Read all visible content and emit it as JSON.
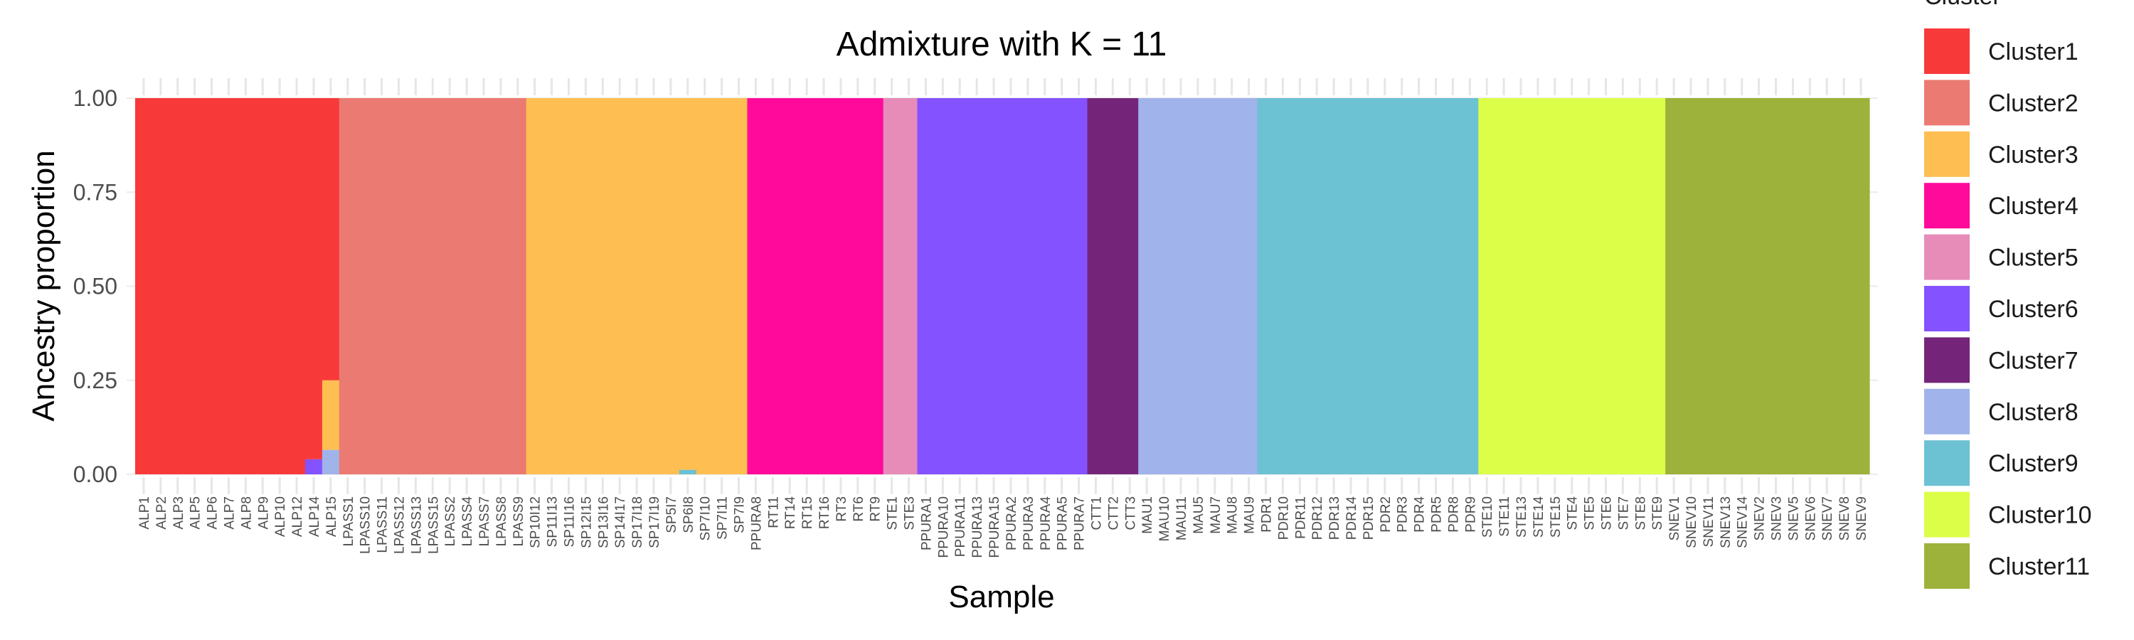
{
  "chart_data": {
    "type": "bar",
    "stacked": true,
    "title": "Admixture with K = 11",
    "xlabel": "Sample",
    "ylabel": "Ancestry proportion",
    "ylim": [
      0,
      1
    ],
    "yticks": [
      "0.00",
      "0.25",
      "0.50",
      "0.75",
      "1.00"
    ],
    "grid": true,
    "legend": {
      "title": "Cluster",
      "placement": "right",
      "entries": [
        {
          "name": "Cluster1",
          "color": "#f8393a"
        },
        {
          "name": "Cluster2",
          "color": "#eb7a72"
        },
        {
          "name": "Cluster3",
          "color": "#febe51"
        },
        {
          "name": "Cluster4",
          "color": "#ff0a9b"
        },
        {
          "name": "Cluster5",
          "color": "#e78bb8"
        },
        {
          "name": "Cluster6",
          "color": "#8452fe"
        },
        {
          "name": "Cluster7",
          "color": "#742579"
        },
        {
          "name": "Cluster8",
          "color": "#a0b3ea"
        },
        {
          "name": "Cluster9",
          "color": "#6cc1d3"
        },
        {
          "name": "Cluster10",
          "color": "#dcfe49"
        },
        {
          "name": "Cluster11",
          "color": "#9cb23a"
        }
      ]
    },
    "categories": [
      "ALP1",
      "ALP2",
      "ALP3",
      "ALP5",
      "ALP6",
      "ALP7",
      "ALP8",
      "ALP9",
      "ALP10",
      "ALP12",
      "ALP14",
      "ALP15",
      "LPASS1",
      "LPASS10",
      "LPASS11",
      "LPASS12",
      "LPASS13",
      "LPASS15",
      "LPASS2",
      "LPASS4",
      "LPASS7",
      "LPASS8",
      "LPASS9",
      "SP10I12",
      "SP11I13",
      "SP11I16",
      "SP12I15",
      "SP13I16",
      "SP14I17",
      "SP17I18",
      "SP17I19",
      "SP5I7",
      "SP6I8",
      "SP7I10",
      "SP7I11",
      "SP7I9",
      "PPURA8",
      "RT11",
      "RT14",
      "RT15",
      "RT16",
      "RT3",
      "RT6",
      "RT9",
      "STE1",
      "STE3",
      "PPURA1",
      "PPURA10",
      "PPURA11",
      "PPURA13",
      "PPURA15",
      "PPURA2",
      "PPURA3",
      "PPURA4",
      "PPURA5",
      "PPURA7",
      "CTT1",
      "CTT2",
      "CTT3",
      "MAU1",
      "MAU10",
      "MAU11",
      "MAU5",
      "MAU7",
      "MAU8",
      "MAU9",
      "PDR1",
      "PDR10",
      "PDR11",
      "PDR12",
      "PDR13",
      "PDR14",
      "PDR15",
      "PDR2",
      "PDR3",
      "PDR4",
      "PDR5",
      "PDR8",
      "PDR9",
      "STE10",
      "STE11",
      "STE13",
      "STE14",
      "STE15",
      "STE4",
      "STE5",
      "STE6",
      "STE7",
      "STE8",
      "STE9",
      "SNEV1",
      "SNEV10",
      "SNEV11",
      "SNEV13",
      "SNEV14",
      "SNEV2",
      "SNEV3",
      "SNEV5",
      "SNEV6",
      "SNEV7",
      "SNEV8",
      "SNEV9"
    ],
    "dominant_cluster": [
      1,
      1,
      1,
      1,
      1,
      1,
      1,
      1,
      1,
      1,
      1,
      1,
      2,
      2,
      2,
      2,
      2,
      2,
      2,
      2,
      2,
      2,
      2,
      3,
      3,
      3,
      3,
      3,
      3,
      3,
      3,
      3,
      3,
      3,
      3,
      3,
      4,
      4,
      4,
      4,
      4,
      4,
      4,
      4,
      5,
      5,
      6,
      6,
      6,
      6,
      6,
      6,
      6,
      6,
      6,
      6,
      7,
      7,
      7,
      8,
      8,
      8,
      8,
      8,
      8,
      8,
      9,
      9,
      9,
      9,
      9,
      9,
      9,
      9,
      9,
      9,
      9,
      9,
      9,
      10,
      10,
      10,
      10,
      10,
      10,
      10,
      10,
      10,
      10,
      10,
      11,
      11,
      11,
      11,
      11,
      11,
      11,
      11,
      11,
      11,
      11,
      11
    ],
    "mixed_samples": [
      {
        "sample": "ALP14",
        "proportions": {
          "Cluster6": 0.04,
          "Cluster1": 0.96
        }
      },
      {
        "sample": "ALP15",
        "proportions": {
          "Cluster8": 0.065,
          "Cluster3": 0.185,
          "Cluster1": 0.75
        }
      },
      {
        "sample": "SP6I8",
        "proportions": {
          "Cluster9": 0.012,
          "Cluster3": 0.988
        }
      }
    ]
  }
}
